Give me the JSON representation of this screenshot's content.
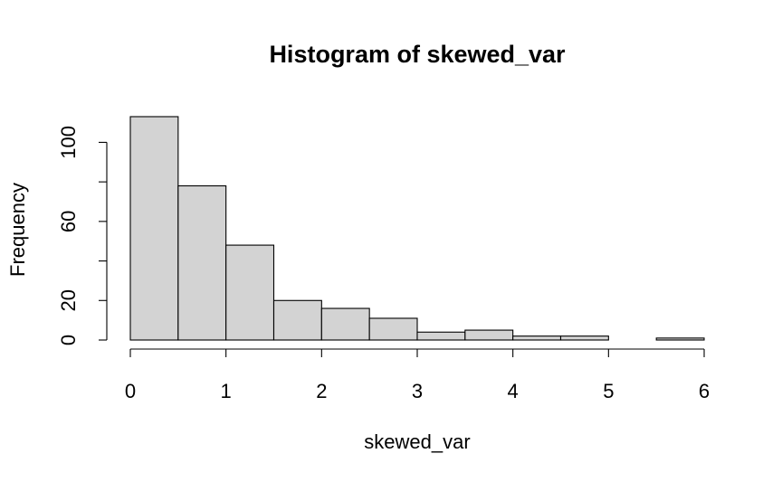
{
  "chart_data": {
    "type": "bar",
    "title": "Histogram of skewed_var",
    "xlabel": "skewed_var",
    "ylabel": "Frequency",
    "bin_edges": [
      0,
      0.5,
      1,
      1.5,
      2,
      2.5,
      3,
      3.5,
      4,
      4.5,
      5,
      5.5,
      6
    ],
    "values": [
      113,
      78,
      48,
      20,
      16,
      11,
      4,
      5,
      2,
      2,
      0,
      1
    ],
    "xlim": [
      0,
      6
    ],
    "ylim": [
      0,
      113
    ],
    "x_ticks": [
      0,
      1,
      2,
      3,
      4,
      5,
      6
    ],
    "y_ticks": [
      0,
      20,
      40,
      60,
      80,
      100
    ],
    "y_tick_labels": [
      "0",
      "20",
      "60",
      "100"
    ],
    "y_tick_labeled_values": [
      0,
      20,
      60,
      100
    ],
    "bar_color": "#d3d3d3",
    "grid": false
  }
}
